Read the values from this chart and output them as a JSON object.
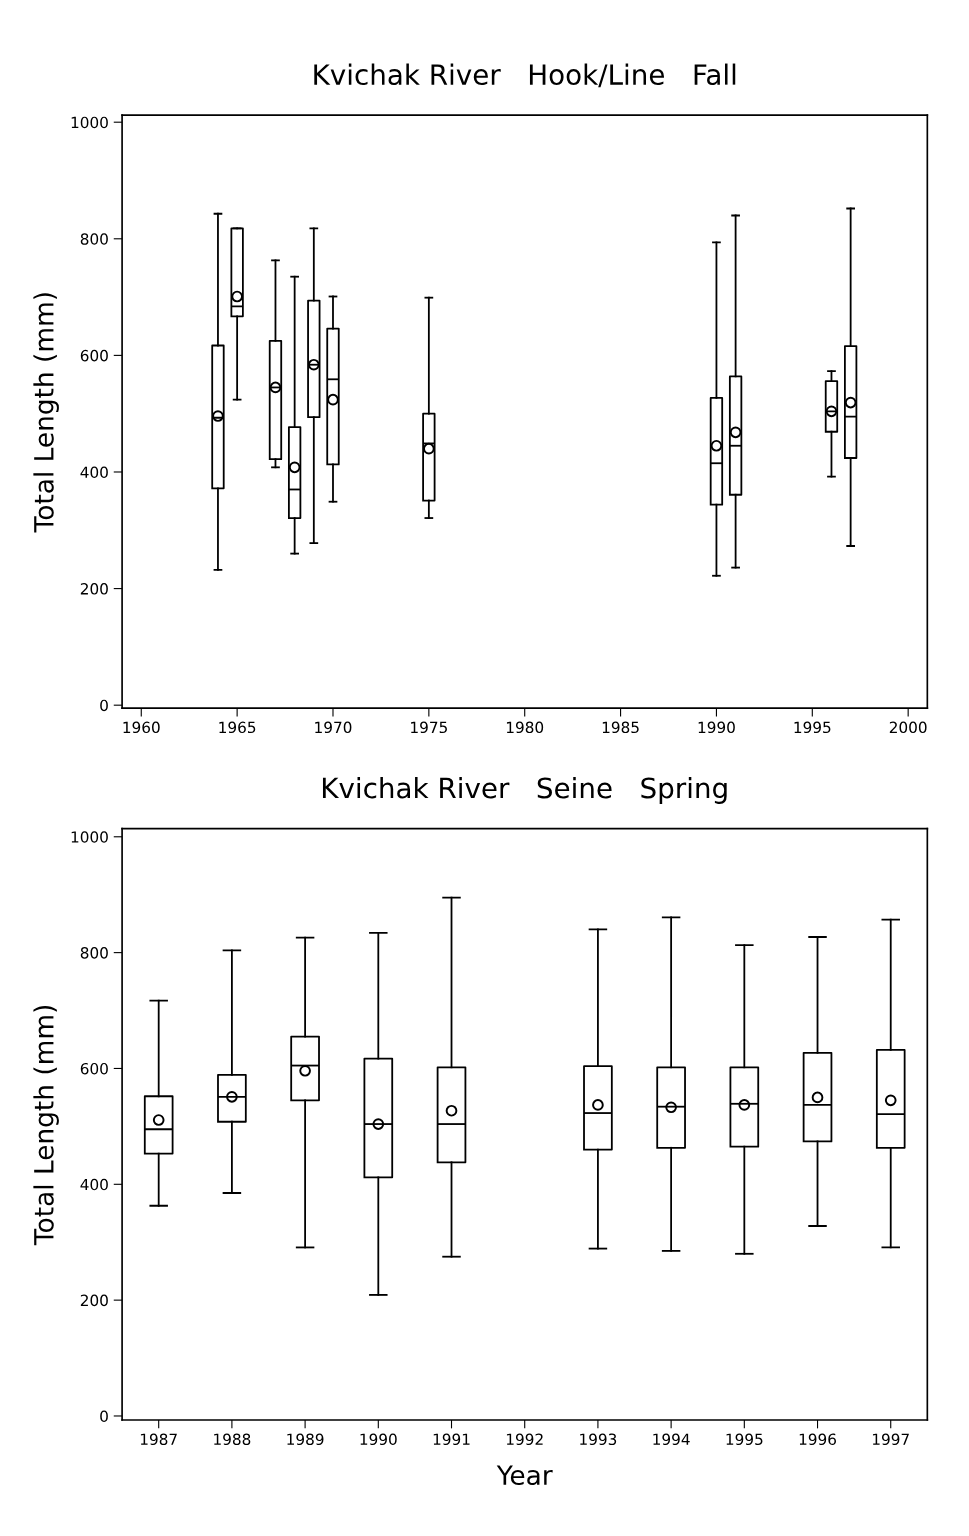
{
  "chart_data": [
    {
      "type": "box",
      "title": "Kvichak River   Hook/Line   Fall",
      "ylabel": "Total Length (mm)",
      "x": [
        1964,
        1965,
        1967,
        1968,
        1969,
        1970,
        1975,
        1990,
        1991,
        1996,
        1997
      ],
      "boxes": [
        {
          "low": 232,
          "q1": 372,
          "median": 493,
          "q3": 617,
          "high": 843,
          "mean": 496
        },
        {
          "low": 524,
          "q1": 667,
          "median": 684,
          "q3": 818,
          "high": 818,
          "mean": 701
        },
        {
          "low": 408,
          "q1": 422,
          "median": 545,
          "q3": 625,
          "high": 763,
          "mean": 545
        },
        {
          "low": 260,
          "q1": 321,
          "median": 370,
          "q3": 477,
          "high": 735,
          "mean": 408
        },
        {
          "low": 278,
          "q1": 494,
          "median": 584,
          "q3": 694,
          "high": 818,
          "mean": 584
        },
        {
          "low": 349,
          "q1": 413,
          "median": 559,
          "q3": 646,
          "high": 701,
          "mean": 524
        },
        {
          "low": 321,
          "q1": 351,
          "median": 449,
          "q3": 500,
          "high": 699,
          "mean": 440
        },
        {
          "low": 222,
          "q1": 344,
          "median": 415,
          "q3": 527,
          "high": 794,
          "mean": 445
        },
        {
          "low": 236,
          "q1": 361,
          "median": 445,
          "q3": 564,
          "high": 840,
          "mean": 468
        },
        {
          "low": 392,
          "q1": 469,
          "median": 504,
          "q3": 556,
          "high": 573,
          "mean": 504
        },
        {
          "low": 273,
          "q1": 424,
          "median": 495,
          "q3": 616,
          "high": 852,
          "mean": 519
        }
      ],
      "xlim": [
        1959,
        2001
      ],
      "xticks": [
        1960,
        1965,
        1970,
        1975,
        1980,
        1985,
        1990,
        1995,
        2000
      ],
      "ylim": [
        -5,
        1012
      ],
      "yticks": [
        0,
        200,
        400,
        600,
        800,
        1000
      ],
      "grid": false,
      "marker": "circle"
    },
    {
      "type": "box",
      "title": "Kvichak River   Seine   Spring",
      "ylabel": "Total Length (mm)",
      "xlabel": "Year",
      "categories": [
        "1987",
        "1988",
        "1989",
        "1990",
        "1991",
        "1992",
        "1993",
        "1994",
        "1995",
        "1996",
        "1997"
      ],
      "boxes": [
        {
          "low": 363,
          "q1": 453,
          "median": 495,
          "q3": 552,
          "high": 717,
          "mean": 511
        },
        {
          "low": 385,
          "q1": 508,
          "median": 551,
          "q3": 589,
          "high": 804,
          "mean": 551
        },
        {
          "low": 291,
          "q1": 545,
          "median": 605,
          "q3": 655,
          "high": 826,
          "mean": 596
        },
        {
          "low": 209,
          "q1": 412,
          "median": 504,
          "q3": 617,
          "high": 834,
          "mean": 504
        },
        {
          "low": 275,
          "q1": 438,
          "median": 504,
          "q3": 602,
          "high": 895,
          "mean": 527
        },
        null,
        {
          "low": 289,
          "q1": 460,
          "median": 523,
          "q3": 604,
          "high": 840,
          "mean": 537
        },
        {
          "low": 285,
          "q1": 463,
          "median": 534,
          "q3": 602,
          "high": 861,
          "mean": 533
        },
        {
          "low": 280,
          "q1": 465,
          "median": 539,
          "q3": 602,
          "high": 813,
          "mean": 537
        },
        {
          "low": 328,
          "q1": 474,
          "median": 537,
          "q3": 627,
          "high": 827,
          "mean": 550
        },
        {
          "low": 291,
          "q1": 463,
          "median": 521,
          "q3": 632,
          "high": 857,
          "mean": 545
        }
      ],
      "ylim": [
        -7,
        1014
      ],
      "yticks": [
        0,
        200,
        400,
        600,
        800,
        1000
      ],
      "grid": false,
      "marker": "circle"
    }
  ]
}
